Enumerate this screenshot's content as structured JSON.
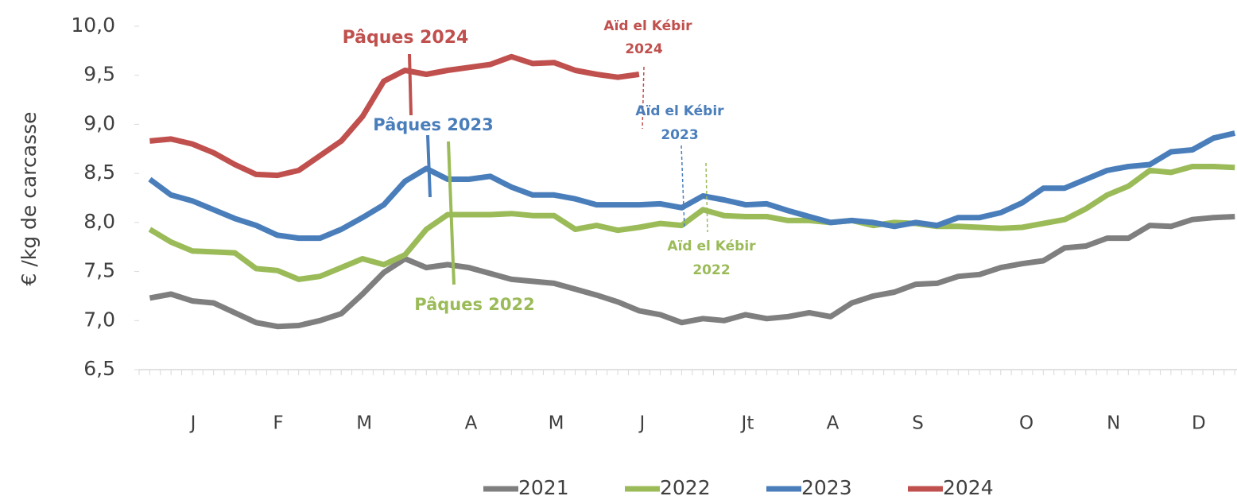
{
  "chart_data": {
    "type": "line",
    "y_label": "€ /kg de carcasse",
    "x": [
      1,
      2,
      3,
      4,
      5,
      6,
      7,
      8,
      9,
      10,
      11,
      12,
      13,
      14,
      15,
      16,
      17,
      18,
      19,
      20,
      21,
      22,
      23,
      24,
      25,
      26,
      27,
      28,
      29,
      30,
      31,
      32,
      33,
      34,
      35,
      36,
      37,
      38,
      39,
      40,
      41,
      42,
      43,
      44,
      45,
      46,
      47,
      48,
      49,
      50,
      51,
      52
    ],
    "xlim": [
      0.5,
      52.1
    ],
    "xticks": [
      {
        "value": 3.04,
        "label": "J"
      },
      {
        "value": 7.04,
        "label": "F"
      },
      {
        "value": 11.08,
        "label": "M"
      },
      {
        "value": 16.1,
        "label": "A"
      },
      {
        "value": 20.1,
        "label": "M"
      },
      {
        "value": 24.15,
        "label": "J"
      },
      {
        "value": 29.1,
        "label": "Jt"
      },
      {
        "value": 33.1,
        "label": "A"
      },
      {
        "value": 37.1,
        "label": "S"
      },
      {
        "value": 42.2,
        "label": "O"
      },
      {
        "value": 46.3,
        "label": "N"
      },
      {
        "value": 50.3,
        "label": "D"
      }
    ],
    "ylim": [
      6.5,
      10.0
    ],
    "yticks": [
      {
        "value": 6.5,
        "label": "6,5"
      },
      {
        "value": 7.0,
        "label": "7,0"
      },
      {
        "value": 7.5,
        "label": "7,5"
      },
      {
        "value": 8.0,
        "label": "8,0"
      },
      {
        "value": 8.5,
        "label": "8,5"
      },
      {
        "value": 9.0,
        "label": "9,0"
      },
      {
        "value": 9.5,
        "label": "9,5"
      },
      {
        "value": 10.0,
        "label": "10,0"
      }
    ],
    "grid": false,
    "legend": "bottom",
    "series": [
      {
        "name": "2021",
        "color": "#7f7f7f",
        "values": [
          7.23,
          7.27,
          7.2,
          7.18,
          7.08,
          6.98,
          6.94,
          6.95,
          7.0,
          7.07,
          7.27,
          7.49,
          7.63,
          7.54,
          7.57,
          7.54,
          7.48,
          7.42,
          7.4,
          7.38,
          7.32,
          7.26,
          7.19,
          7.1,
          7.06,
          6.98,
          7.02,
          7.0,
          7.06,
          7.02,
          7.04,
          7.08,
          7.04,
          7.18,
          7.25,
          7.29,
          7.37,
          7.38,
          7.45,
          7.47,
          7.54,
          7.58,
          7.61,
          7.74,
          7.76,
          7.84,
          7.84,
          7.97,
          7.96,
          8.03,
          8.05,
          8.06
        ]
      },
      {
        "name": "2022",
        "color": "#9bbb59",
        "values": [
          7.93,
          7.8,
          7.71,
          7.7,
          7.69,
          7.53,
          7.51,
          7.42,
          7.45,
          7.54,
          7.63,
          7.57,
          7.67,
          7.93,
          8.08,
          8.08,
          8.08,
          8.09,
          8.07,
          8.07,
          7.93,
          7.97,
          7.92,
          7.95,
          7.99,
          7.97,
          8.13,
          8.07,
          8.06,
          8.06,
          8.02,
          8.02,
          8.0,
          8.02,
          7.97,
          8.0,
          7.99,
          7.96,
          7.96,
          7.95,
          7.94,
          7.95,
          7.99,
          8.03,
          8.14,
          8.28,
          8.37,
          8.53,
          8.51,
          8.57,
          8.57,
          8.56
        ]
      },
      {
        "name": "2023",
        "color": "#4a7ebb",
        "values": [
          8.44,
          8.28,
          8.22,
          8.13,
          8.04,
          7.97,
          7.87,
          7.84,
          7.84,
          7.93,
          8.05,
          8.18,
          8.42,
          8.55,
          8.44,
          8.44,
          8.47,
          8.36,
          8.28,
          8.28,
          8.24,
          8.18,
          8.18,
          8.18,
          8.19,
          8.15,
          8.27,
          8.23,
          8.18,
          8.19,
          8.12,
          8.06,
          8.0,
          8.02,
          8.0,
          7.96,
          8.0,
          7.97,
          8.05,
          8.05,
          8.1,
          8.2,
          8.35,
          8.35,
          8.44,
          8.53,
          8.57,
          8.59,
          8.72,
          8.74,
          8.86,
          8.91
        ]
      },
      {
        "name": "2024",
        "color": "#c0504d",
        "values": [
          8.83,
          8.85,
          8.8,
          8.71,
          8.59,
          8.49,
          8.48,
          8.53,
          8.68,
          8.83,
          9.08,
          9.44,
          9.55,
          9.51,
          9.55,
          9.58,
          9.61,
          9.69,
          9.62,
          9.63,
          9.55,
          9.51,
          9.48,
          9.51,
          null,
          null,
          null,
          null,
          null,
          null,
          null,
          null,
          null,
          null,
          null,
          null,
          null,
          null,
          null,
          null,
          null,
          null,
          null,
          null,
          null,
          null,
          null,
          null,
          null,
          null,
          null,
          null
        ]
      }
    ],
    "annotations": [
      {
        "lines": [
          "Pâques 2024"
        ],
        "color": "#c0504d"
      },
      {
        "lines": [
          "Aïd el Kébir",
          "2024"
        ],
        "color": "#c0504d"
      },
      {
        "lines": [
          "Pâques 2023"
        ],
        "color": "#4a7ebb"
      },
      {
        "lines": [
          "Aïd el Kébir",
          "2023"
        ],
        "color": "#4a7ebb"
      },
      {
        "lines": [
          "Pâques 2022"
        ],
        "color": "#9bbb59"
      },
      {
        "lines": [
          "Aïd el Kébir",
          "2022"
        ],
        "color": "#9bbb59"
      }
    ]
  }
}
